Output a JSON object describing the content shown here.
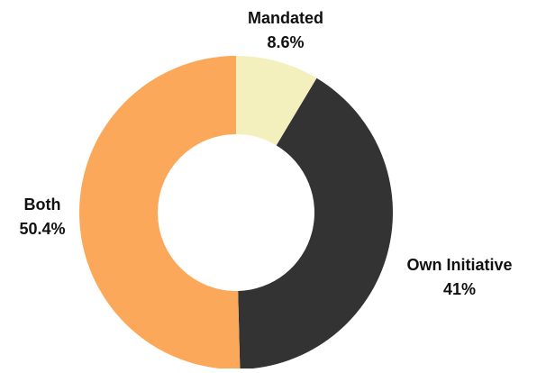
{
  "chart_data": {
    "type": "pie",
    "title": "",
    "donut": true,
    "slices": [
      {
        "label": "Mandated",
        "value": 8.6,
        "value_label": "8.6%",
        "color": "#F3F0BE"
      },
      {
        "label": "Own Initiative",
        "value": 41,
        "value_label": "41%",
        "color": "#333333"
      },
      {
        "label": "Both",
        "value": 50.4,
        "value_label": "50.4%",
        "color": "#FCA85A"
      }
    ]
  }
}
